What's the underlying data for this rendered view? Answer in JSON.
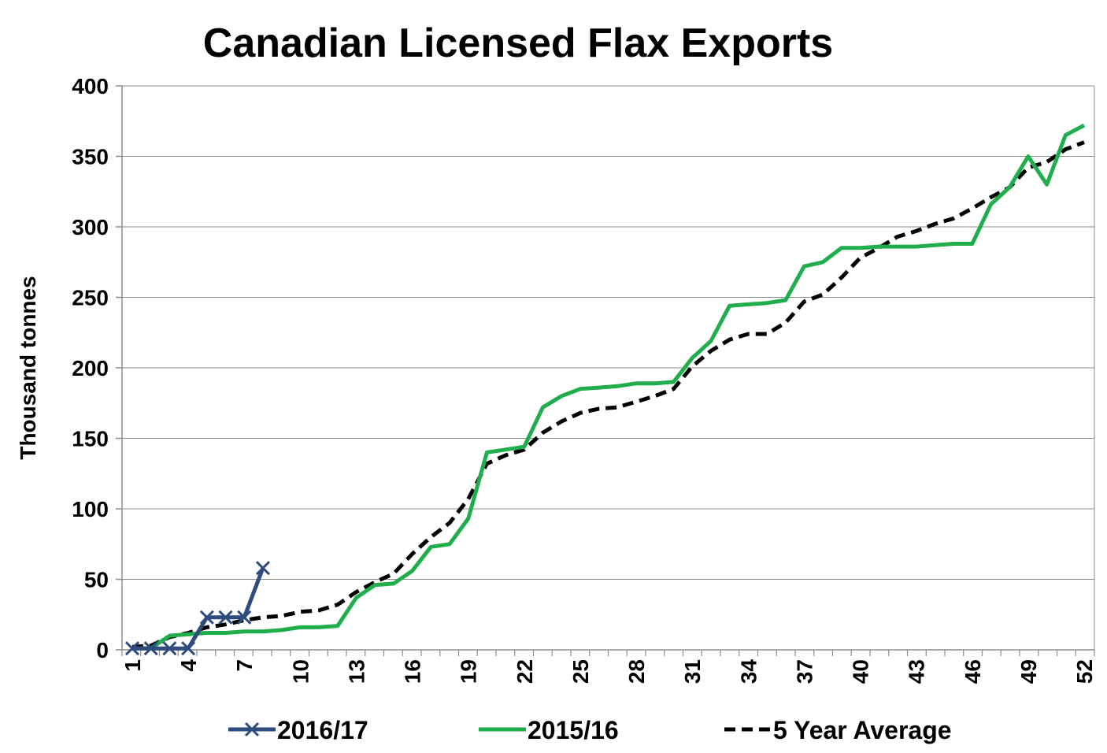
{
  "chart_data": {
    "type": "line",
    "title": "Canadian Licensed Flax Exports",
    "ylabel": "Thousand tonnes",
    "xlabel": "",
    "ylim": [
      0,
      400
    ],
    "yticks": [
      0,
      50,
      100,
      150,
      200,
      250,
      300,
      350,
      400
    ],
    "xlim": [
      1,
      52
    ],
    "xticks": [
      1,
      4,
      7,
      10,
      13,
      16,
      19,
      22,
      25,
      28,
      31,
      34,
      37,
      40,
      43,
      46,
      49,
      52
    ],
    "grid": "horizontal",
    "legend_position": "bottom",
    "series": [
      {
        "name": "2016/17",
        "color": "#2e4c7e",
        "style": "solid-marker-x",
        "x": [
          1,
          2,
          3,
          4,
          5,
          6,
          7,
          8
        ],
        "values": [
          1,
          1,
          1,
          1,
          23,
          23,
          23,
          58
        ]
      },
      {
        "name": "2015/16",
        "color": "#1fae4b",
        "style": "solid",
        "x": [
          1,
          2,
          3,
          4,
          5,
          6,
          7,
          8,
          9,
          10,
          11,
          12,
          13,
          14,
          15,
          16,
          17,
          18,
          19,
          20,
          21,
          22,
          23,
          24,
          25,
          26,
          27,
          28,
          29,
          30,
          31,
          32,
          33,
          34,
          35,
          36,
          37,
          38,
          39,
          40,
          41,
          42,
          43,
          44,
          45,
          46,
          47,
          48,
          49,
          50,
          51,
          52
        ],
        "values": [
          1,
          1,
          10,
          11,
          12,
          12,
          13,
          13,
          14,
          16,
          16,
          17,
          37,
          46,
          47,
          56,
          73,
          75,
          93,
          140,
          142,
          144,
          172,
          180,
          185,
          186,
          187,
          189,
          189,
          190,
          207,
          219,
          244,
          245,
          246,
          248,
          272,
          275,
          285,
          285,
          286,
          286,
          286,
          287,
          288,
          288,
          316,
          328,
          350,
          330,
          365,
          372
        ]
      },
      {
        "name": "5 Year Average",
        "color": "#000000",
        "style": "dashed",
        "x": [
          1,
          2,
          3,
          4,
          5,
          6,
          7,
          8,
          9,
          10,
          11,
          12,
          13,
          14,
          15,
          16,
          17,
          18,
          19,
          20,
          21,
          22,
          23,
          24,
          25,
          26,
          27,
          28,
          29,
          30,
          31,
          32,
          33,
          34,
          35,
          36,
          37,
          38,
          39,
          40,
          41,
          42,
          43,
          44,
          45,
          46,
          47,
          48,
          49,
          50,
          51,
          52
        ],
        "values": [
          2,
          3,
          9,
          12,
          16,
          18,
          21,
          23,
          24,
          27,
          28,
          32,
          41,
          48,
          54,
          68,
          80,
          90,
          107,
          132,
          138,
          142,
          154,
          162,
          168,
          171,
          172,
          176,
          180,
          185,
          201,
          212,
          220,
          224,
          224,
          232,
          247,
          252,
          264,
          278,
          285,
          293,
          297,
          302,
          306,
          313,
          321,
          328,
          342,
          346,
          355,
          360
        ]
      }
    ]
  }
}
